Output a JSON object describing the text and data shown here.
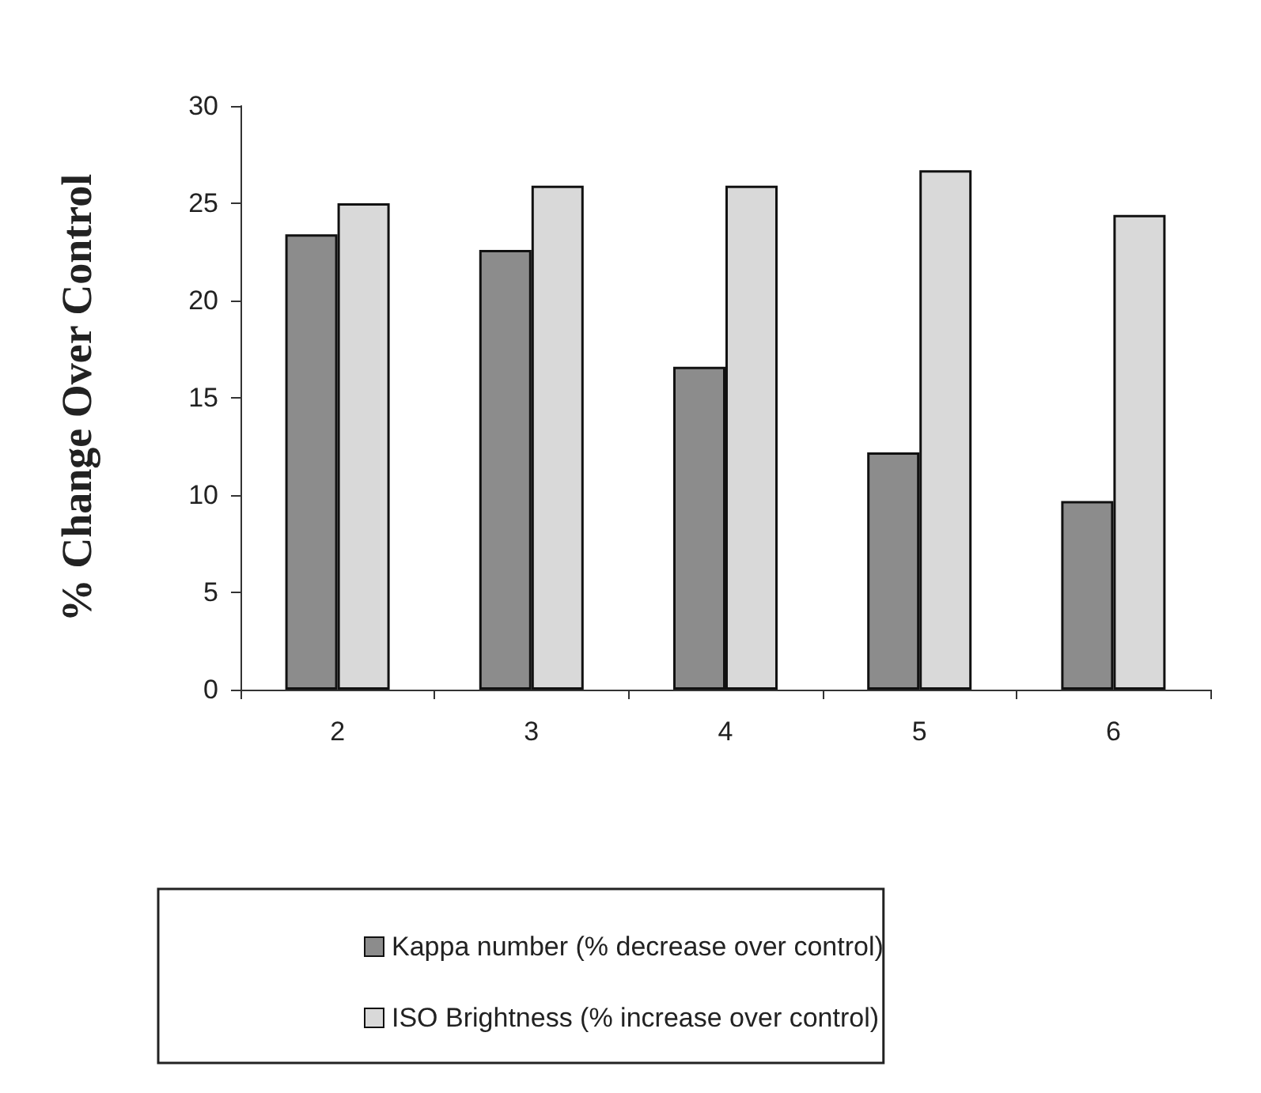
{
  "chart_data": {
    "type": "bar",
    "ylabel": "% Change Over Control",
    "categories": [
      "2",
      "3",
      "4",
      "5",
      "6"
    ],
    "series": [
      {
        "name": "Kappa number (% decrease over control)",
        "color": "#8c8c8c",
        "values": [
          23.4,
          22.6,
          16.6,
          12.2,
          9.7
        ]
      },
      {
        "name": "ISO Brightness (% increase over control)",
        "color": "#d9d9d9",
        "values": [
          25.0,
          25.9,
          25.9,
          26.7,
          24.4
        ]
      }
    ],
    "ylim": [
      0,
      30
    ],
    "yticks": [
      0,
      5,
      10,
      15,
      20,
      25,
      30
    ],
    "grid": false,
    "legend": "bottom"
  }
}
